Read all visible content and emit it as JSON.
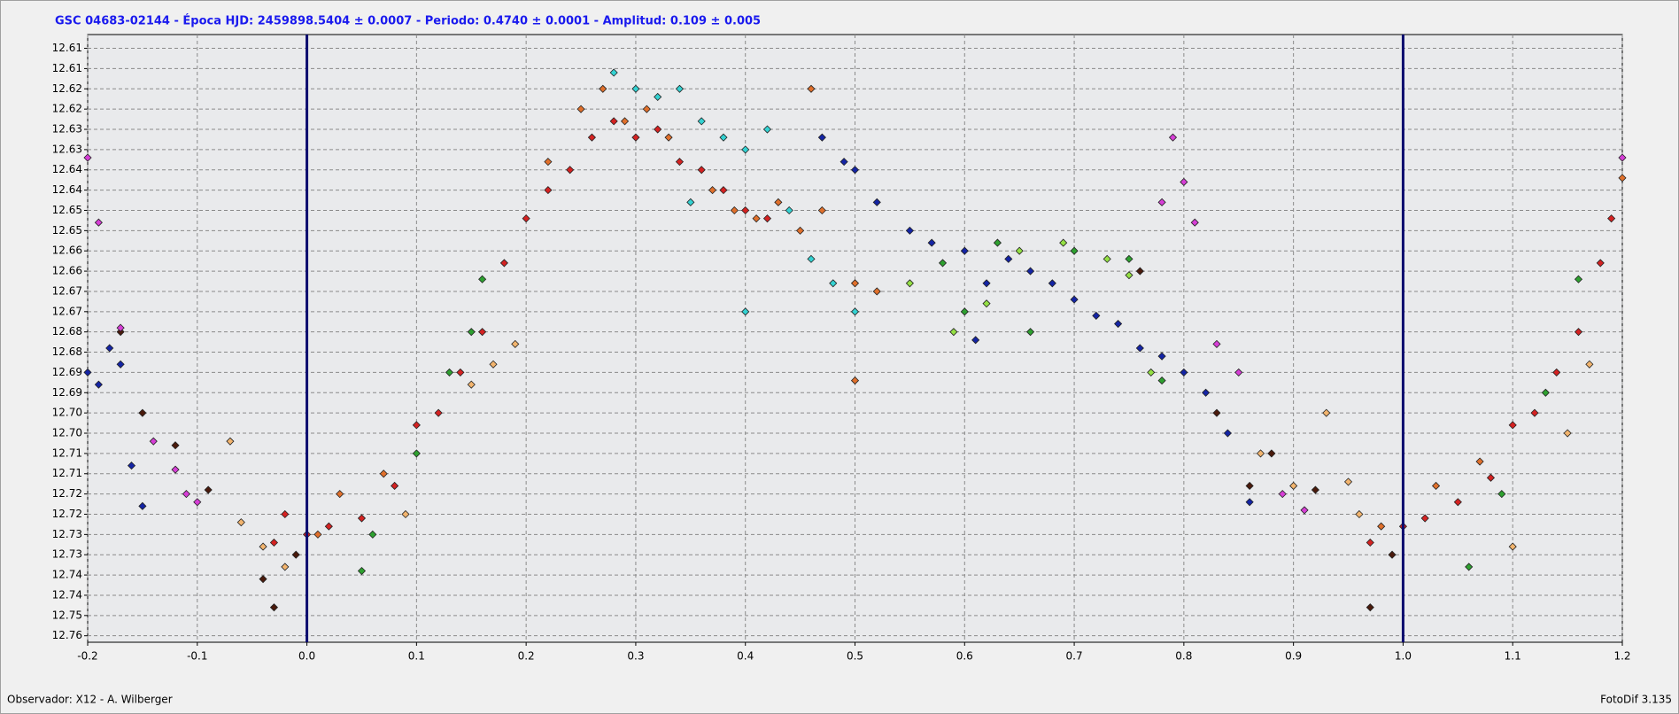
{
  "chart_data": {
    "type": "scatter",
    "title": "GSC 04683-02144 - Época HJD: 2459898.5404 ± 0.0007 - Periodo: 0.4740 ± 0.0001 - Amplitud: 0.109 ± 0.005",
    "footer_left": "Observador: X12 - A. Wilberger",
    "footer_right": "FotoDif 3.135",
    "xlim": [
      -0.2,
      1.2
    ],
    "xticks": [
      -0.2,
      -0.1,
      {
        "value": 0,
        "label": "0.0"
      },
      0.1,
      0.2,
      0.3,
      0.4,
      0.5,
      0.6,
      0.7,
      0.8,
      0.9,
      {
        "value": 1,
        "label": "1.0"
      },
      1.1,
      1.2
    ],
    "ylim": [
      12.6066,
      12.7566
    ],
    "y_inverted": true,
    "yticks": [
      {
        "value": 12.61,
        "label": "12.61"
      },
      {
        "value": 12.615,
        "label": "12.61"
      },
      {
        "value": 12.62,
        "label": "12.62"
      },
      {
        "value": 12.625,
        "label": "12.62"
      },
      {
        "value": 12.63,
        "label": "12.63"
      },
      {
        "value": 12.635,
        "label": "12.63"
      },
      {
        "value": 12.64,
        "label": "12.64"
      },
      {
        "value": 12.645,
        "label": "12.64"
      },
      {
        "value": 12.65,
        "label": "12.65"
      },
      {
        "value": 12.655,
        "label": "12.65"
      },
      {
        "value": 12.66,
        "label": "12.66"
      },
      {
        "value": 12.665,
        "label": "12.66"
      },
      {
        "value": 12.67,
        "label": "12.67"
      },
      {
        "value": 12.675,
        "label": "12.67"
      },
      {
        "value": 12.68,
        "label": "12.68"
      },
      {
        "value": 12.685,
        "label": "12.68"
      },
      {
        "value": 12.69,
        "label": "12.69"
      },
      {
        "value": 12.695,
        "label": "12.69"
      },
      {
        "value": 12.7,
        "label": "12.70"
      },
      {
        "value": 12.705,
        "label": "12.70"
      },
      {
        "value": 12.71,
        "label": "12.71"
      },
      {
        "value": 12.715,
        "label": "12.71"
      },
      {
        "value": 12.72,
        "label": "12.72"
      },
      {
        "value": 12.725,
        "label": "12.72"
      },
      {
        "value": 12.73,
        "label": "12.73"
      },
      {
        "value": 12.735,
        "label": "12.73"
      },
      {
        "value": 12.74,
        "label": "12.74"
      },
      {
        "value": 12.745,
        "label": "12.74"
      },
      {
        "value": 12.75,
        "label": "12.75"
      },
      {
        "value": 12.755,
        "label": "12.76"
      }
    ],
    "grid": true,
    "phase_lines": [
      0,
      1
    ],
    "phase_line_color": "#0a0a6e",
    "series": [
      {
        "color": "#d42222",
        "x": [
          0.0,
          -0.02,
          0.02,
          0.05,
          0.08,
          0.1,
          0.12,
          0.14,
          0.16,
          0.18,
          0.2,
          0.22,
          0.24,
          0.26,
          0.28,
          0.3,
          0.32,
          0.34,
          0.36,
          0.38,
          0.4,
          0.42,
          -0.03,
          0.97,
          1.0,
          1.02,
          1.05,
          1.08,
          1.1,
          1.12,
          1.14,
          1.16,
          1.18,
          1.19
        ],
        "values": [
          12.73,
          12.725,
          12.728,
          12.726,
          12.718,
          12.703,
          12.7,
          12.69,
          12.68,
          12.663,
          12.652,
          12.645,
          12.64,
          12.632,
          12.628,
          12.632,
          12.63,
          12.638,
          12.64,
          12.645,
          12.65,
          12.652,
          12.732,
          12.732,
          12.728,
          12.726,
          12.722,
          12.716,
          12.703,
          12.7,
          12.69,
          12.68,
          12.663,
          12.652
        ]
      },
      {
        "color": "#e0702c",
        "x": [
          0.25,
          0.27,
          0.29,
          0.31,
          0.33,
          0.37,
          0.39,
          0.41,
          0.43,
          0.45,
          0.47,
          0.5,
          0.52,
          0.01,
          0.03,
          0.07,
          0.22,
          0.46,
          0.5,
          0.98,
          1.03,
          1.07,
          1.2
        ],
        "values": [
          12.625,
          12.62,
          12.628,
          12.625,
          12.632,
          12.645,
          12.65,
          12.652,
          12.648,
          12.655,
          12.65,
          12.668,
          12.67,
          12.73,
          12.72,
          12.715,
          12.638,
          12.62,
          12.692,
          12.728,
          12.718,
          12.712,
          12.642
        ]
      },
      {
        "color": "#f2b46e",
        "x": [
          -0.06,
          -0.04,
          -0.02,
          0.09,
          0.15,
          0.17,
          0.19,
          0.93,
          0.95,
          0.96,
          1.1,
          1.15,
          1.17,
          -0.07,
          0.87,
          0.9
        ],
        "values": [
          12.727,
          12.733,
          12.738,
          12.725,
          12.693,
          12.688,
          12.683,
          12.7,
          12.717,
          12.725,
          12.733,
          12.705,
          12.688,
          12.707,
          12.71,
          12.718
        ]
      },
      {
        "color": "#4a1a0c",
        "x": [
          -0.03,
          -0.04,
          -0.01,
          -0.17,
          -0.15,
          -0.12,
          -0.09,
          0.76,
          0.83,
          0.86,
          0.88,
          0.97,
          0.92,
          0.99
        ],
        "values": [
          12.748,
          12.741,
          12.735,
          12.68,
          12.7,
          12.708,
          12.719,
          12.665,
          12.7,
          12.718,
          12.71,
          12.748,
          12.719,
          12.735
        ]
      },
      {
        "color": "#2ea030",
        "x": [
          0.05,
          0.06,
          0.1,
          0.13,
          0.15,
          0.16,
          0.58,
          0.6,
          0.63,
          0.66,
          0.7,
          0.75,
          0.78,
          1.06,
          1.09,
          1.13,
          1.16
        ],
        "values": [
          12.739,
          12.73,
          12.71,
          12.69,
          12.68,
          12.667,
          12.663,
          12.675,
          12.658,
          12.68,
          12.66,
          12.662,
          12.692,
          12.738,
          12.72,
          12.695,
          12.667
        ]
      },
      {
        "color": "#34d2d2",
        "x": [
          0.28,
          0.3,
          0.32,
          0.34,
          0.36,
          0.38,
          0.4,
          0.42,
          0.44,
          0.46,
          0.48,
          0.5,
          0.4,
          0.35
        ],
        "values": [
          12.616,
          12.62,
          12.622,
          12.62,
          12.628,
          12.632,
          12.635,
          12.63,
          12.65,
          12.662,
          12.668,
          12.675,
          12.675,
          12.648
        ]
      },
      {
        "color": "#1424a4",
        "x": [
          0.47,
          0.49,
          0.5,
          0.52,
          0.55,
          0.57,
          0.6,
          0.62,
          0.64,
          0.66,
          0.68,
          0.7,
          0.72,
          0.74,
          0.76,
          0.78,
          0.8,
          0.82,
          0.84,
          0.86,
          -0.2,
          -0.19,
          -0.18,
          -0.17,
          -0.16,
          -0.15,
          0.61
        ],
        "values": [
          12.632,
          12.638,
          12.64,
          12.648,
          12.655,
          12.658,
          12.66,
          12.668,
          12.662,
          12.665,
          12.668,
          12.672,
          12.676,
          12.678,
          12.684,
          12.686,
          12.69,
          12.695,
          12.705,
          12.722,
          12.69,
          12.693,
          12.684,
          12.688,
          12.713,
          12.723,
          12.682
        ]
      },
      {
        "color": "#d63ed6",
        "x": [
          -0.2,
          -0.19,
          -0.17,
          -0.14,
          -0.12,
          -0.11,
          -0.1,
          0.79,
          0.8,
          0.81,
          0.78,
          0.83,
          0.85,
          0.89,
          0.91,
          1.2
        ],
        "values": [
          12.637,
          12.653,
          12.679,
          12.707,
          12.714,
          12.72,
          12.722,
          12.632,
          12.643,
          12.653,
          12.648,
          12.683,
          12.69,
          12.72,
          12.724,
          12.637
        ]
      },
      {
        "color": "#94e044",
        "x": [
          0.55,
          0.59,
          0.62,
          0.65,
          0.69,
          0.73,
          0.75,
          0.77
        ],
        "values": [
          12.668,
          12.68,
          12.673,
          12.66,
          12.658,
          12.662,
          12.666,
          12.69
        ]
      }
    ]
  }
}
